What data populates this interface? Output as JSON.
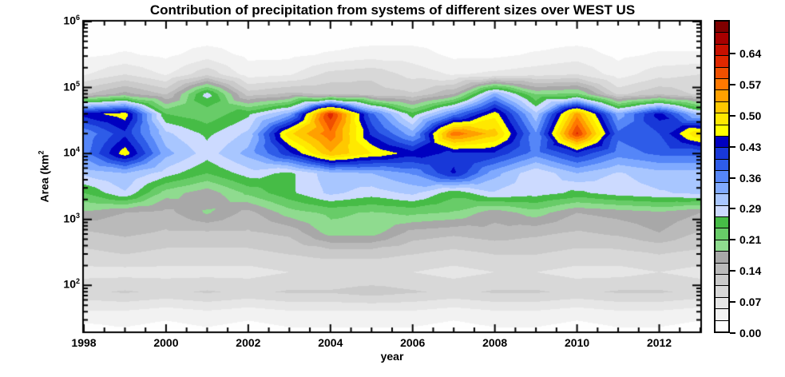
{
  "figure": {
    "title": "Contribution of precipitation from systems of different sizes over WEST US",
    "xlabel": "year",
    "ylabel": "Area (km²",
    "ylabel_text": "Area (km",
    "ylabel_sup": "2",
    "background": "#FFFFFF"
  },
  "chart_data": {
    "type": "filled_contour",
    "title": "Contribution of precipitation from systems of different sizes over WEST US",
    "xlabel": "year",
    "ylabel": "Area (km²",
    "x_range": [
      1998,
      2013
    ],
    "x_major_ticks": [
      1998,
      2000,
      2002,
      2004,
      2006,
      2008,
      2010,
      2012
    ],
    "x_minor_tick_step": 0.5,
    "y_log10_range": [
      1.301,
      6.0
    ],
    "y_major_ticks": [
      {
        "log10": 2,
        "base": "10",
        "exp": "2"
      },
      {
        "log10": 3,
        "base": "10",
        "exp": "3"
      },
      {
        "log10": 4,
        "base": "10",
        "exp": "4"
      },
      {
        "log10": 5,
        "base": "10",
        "exp": "5"
      },
      {
        "log10": 6,
        "base": "10",
        "exp": "6"
      }
    ],
    "grid_on": false,
    "x_years": [
      1998,
      1999,
      2000,
      2001,
      2002,
      2003,
      2004,
      2005,
      2006,
      2007,
      2008,
      2009,
      2010,
      2011,
      2012,
      2013
    ],
    "log10_area_bins": [
      1.3,
      1.6,
      1.9,
      2.2,
      2.5,
      2.8,
      3.1,
      3.4,
      3.7,
      4.0,
      4.3,
      4.6,
      4.9,
      5.2,
      5.5,
      5.8
    ],
    "values_fraction": [
      [
        0.01,
        0.02,
        0.01,
        0.02,
        0.01,
        0.02,
        0.02,
        0.02,
        0.02,
        0.01,
        0.02,
        0.02,
        0.01,
        0.02,
        0.02,
        0.01
      ],
      [
        0.05,
        0.05,
        0.04,
        0.05,
        0.04,
        0.05,
        0.05,
        0.05,
        0.05,
        0.04,
        0.05,
        0.05,
        0.04,
        0.05,
        0.05,
        0.04
      ],
      [
        0.1,
        0.11,
        0.1,
        0.11,
        0.1,
        0.11,
        0.11,
        0.12,
        0.11,
        0.1,
        0.11,
        0.11,
        0.1,
        0.11,
        0.11,
        0.1
      ],
      [
        0.07,
        0.07,
        0.07,
        0.07,
        0.07,
        0.08,
        0.08,
        0.08,
        0.08,
        0.07,
        0.08,
        0.08,
        0.07,
        0.07,
        0.08,
        0.07
      ],
      [
        0.1,
        0.11,
        0.1,
        0.1,
        0.1,
        0.11,
        0.12,
        0.12,
        0.11,
        0.1,
        0.11,
        0.11,
        0.1,
        0.1,
        0.11,
        0.1
      ],
      [
        0.13,
        0.14,
        0.13,
        0.13,
        0.13,
        0.14,
        0.2,
        0.2,
        0.15,
        0.14,
        0.15,
        0.14,
        0.13,
        0.14,
        0.16,
        0.13
      ],
      [
        0.18,
        0.16,
        0.15,
        0.19,
        0.15,
        0.2,
        0.22,
        0.21,
        0.22,
        0.21,
        0.17,
        0.2,
        0.16,
        0.17,
        0.18,
        0.16
      ],
      [
        0.24,
        0.29,
        0.2,
        0.17,
        0.22,
        0.26,
        0.3,
        0.28,
        0.3,
        0.25,
        0.29,
        0.28,
        0.26,
        0.28,
        0.29,
        0.3
      ],
      [
        0.3,
        0.32,
        0.28,
        0.24,
        0.28,
        0.26,
        0.31,
        0.32,
        0.35,
        0.43,
        0.33,
        0.27,
        0.32,
        0.29,
        0.31,
        0.31
      ],
      [
        0.36,
        0.47,
        0.33,
        0.28,
        0.33,
        0.42,
        0.53,
        0.48,
        0.44,
        0.42,
        0.42,
        0.36,
        0.42,
        0.36,
        0.38,
        0.38
      ],
      [
        0.35,
        0.42,
        0.3,
        0.26,
        0.3,
        0.5,
        0.58,
        0.42,
        0.33,
        0.58,
        0.52,
        0.35,
        0.62,
        0.38,
        0.4,
        0.51
      ],
      [
        0.44,
        0.47,
        0.24,
        0.22,
        0.26,
        0.33,
        0.63,
        0.38,
        0.25,
        0.36,
        0.47,
        0.3,
        0.55,
        0.33,
        0.44,
        0.3
      ],
      [
        0.13,
        0.17,
        0.13,
        0.28,
        0.12,
        0.14,
        0.13,
        0.12,
        0.11,
        0.16,
        0.33,
        0.21,
        0.22,
        0.1,
        0.13,
        0.1
      ],
      [
        0.05,
        0.08,
        0.05,
        0.1,
        0.04,
        0.05,
        0.09,
        0.1,
        0.07,
        0.05,
        0.06,
        0.07,
        0.08,
        0.04,
        0.07,
        0.08
      ],
      [
        0.02,
        0.03,
        0.02,
        0.04,
        0.02,
        0.02,
        0.03,
        0.04,
        0.04,
        0.02,
        0.02,
        0.03,
        0.04,
        0.02,
        0.03,
        0.03
      ],
      [
        0.01,
        0.01,
        0.01,
        0.01,
        0.01,
        0.01,
        0.01,
        0.01,
        0.01,
        0.01,
        0.01,
        0.01,
        0.01,
        0.01,
        0.01,
        0.01
      ]
    ],
    "value_levels": {
      "min": 0.0,
      "max": 0.72,
      "n_segments": 27
    },
    "palette": [
      "#FEFEFE",
      "#F2F2F2",
      "#E6E6E6",
      "#D8D8D8",
      "#CACACA",
      "#BABABA",
      "#A8A8A8",
      "#8FDB8F",
      "#68CC68",
      "#46BC46",
      "#CCDAFF",
      "#A8C6FF",
      "#80AAFF",
      "#5586F8",
      "#2E5CE8",
      "#1838D8",
      "#0000C0",
      "#FFFF00",
      "#FFE800",
      "#FFC800",
      "#FFA000",
      "#FF7800",
      "#F05000",
      "#E02800",
      "#C81000",
      "#A80000",
      "#800000"
    ],
    "colorbar": {
      "labels": [
        "0.00",
        "0.07",
        "0.14",
        "0.21",
        "0.29",
        "0.36",
        "0.43",
        "0.50",
        "0.57",
        "0.64"
      ],
      "label_values": [
        0.0,
        0.0714,
        0.1429,
        0.2143,
        0.2857,
        0.3571,
        0.4286,
        0.5,
        0.5714,
        0.6429
      ]
    }
  }
}
